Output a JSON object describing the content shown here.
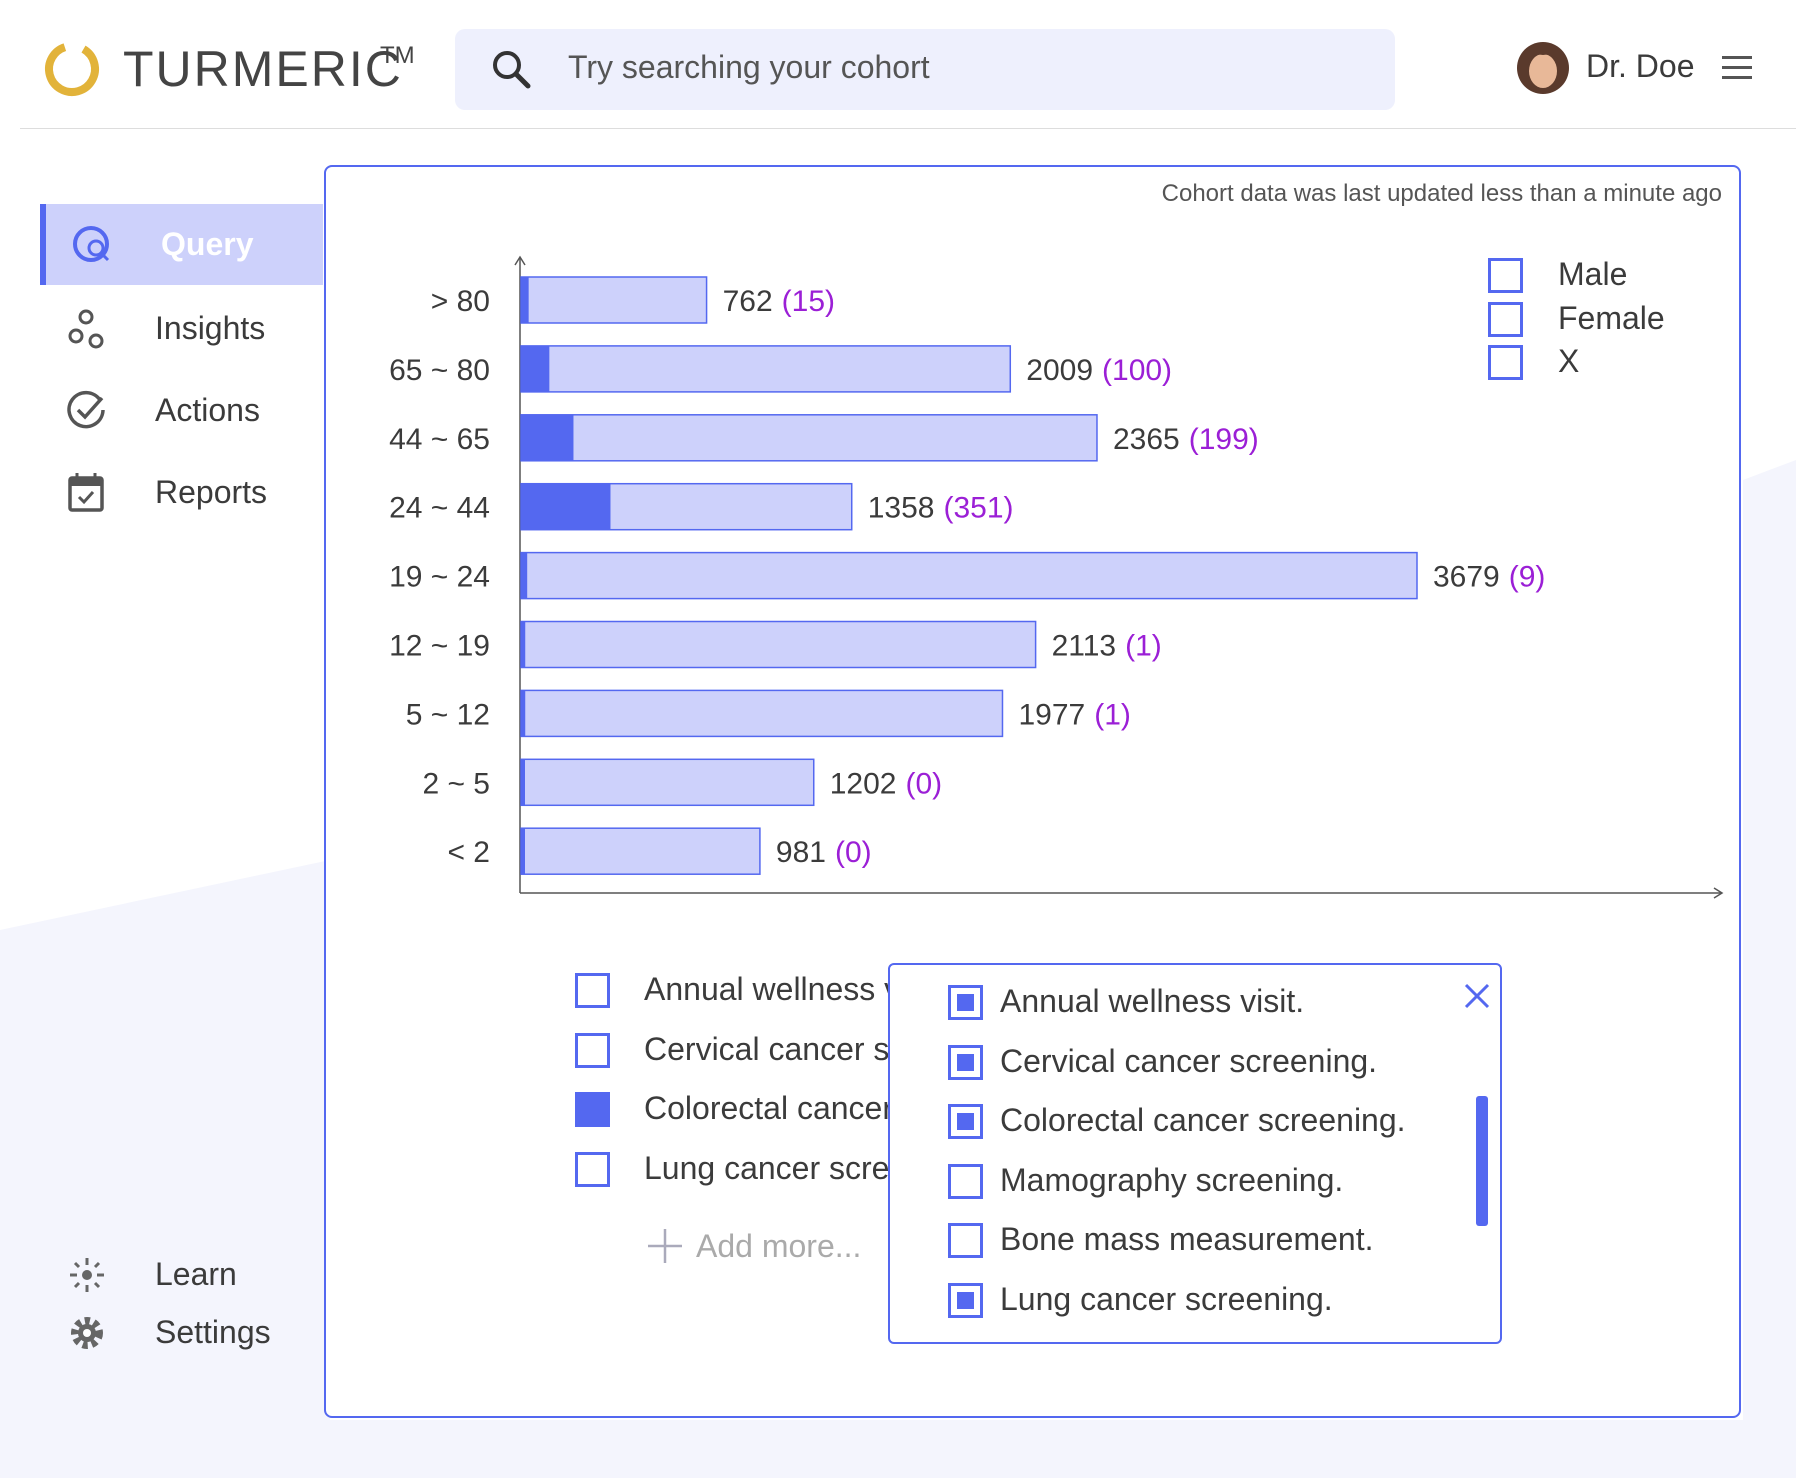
{
  "header": {
    "brand": "TURMERIC",
    "trademark": "TM",
    "search_placeholder": "Try searching your cohort",
    "user_name": "Dr. Doe"
  },
  "sidebar": {
    "items": [
      "Query",
      "Insights",
      "Actions",
      "Reports"
    ],
    "active": 0,
    "footer_items": [
      "Learn",
      "Settings"
    ]
  },
  "status": "Cohort data was last updated less than a minute ago",
  "chart_data": {
    "type": "bar",
    "orientation": "horizontal",
    "categories": [
      "> 80",
      "65 ~ 80",
      "44 ~ 65",
      "24 ~ 44",
      "19 ~ 24",
      "12 ~ 19",
      "5 ~ 12",
      "2 ~ 5",
      "< 2"
    ],
    "values": [
      762,
      2009,
      2365,
      1358,
      3679,
      2113,
      1977,
      1202,
      981
    ],
    "subset_values": [
      15,
      100,
      199,
      351,
      9,
      1,
      1,
      0,
      0
    ],
    "subset_value_labels": [
      "(15)",
      "(100)",
      "(199)",
      "(351)",
      "(9)",
      "(1)",
      "(1)",
      "(0)",
      "(0)"
    ],
    "color": "#cdd1fb",
    "subset_color": "#5468f0"
  },
  "gender_filter": {
    "options": [
      {
        "label": "Male",
        "checked": false
      },
      {
        "label": "Female",
        "checked": false
      },
      {
        "label": "X",
        "checked": false
      }
    ]
  },
  "selected_screenings": {
    "items": [
      {
        "label": "Annual wellness visit.",
        "checked": false
      },
      {
        "label": "Cervical cancer screening.",
        "checked": false
      },
      {
        "label": "Colorectal cancer screening.",
        "checked": true
      },
      {
        "label": "Lung cancer screening.",
        "checked": false
      }
    ],
    "add_more": "Add more..."
  },
  "screening_dropdown": {
    "items": [
      {
        "label": "Annual wellness visit.",
        "checked": true
      },
      {
        "label": "Cervical cancer screening.",
        "checked": true
      },
      {
        "label": "Colorectal cancer screening.",
        "checked": true
      },
      {
        "label": "Mamography screening.",
        "checked": false
      },
      {
        "label": "Bone mass measurement.",
        "checked": false
      },
      {
        "label": "Lung cancer screening.",
        "checked": true
      }
    ]
  }
}
